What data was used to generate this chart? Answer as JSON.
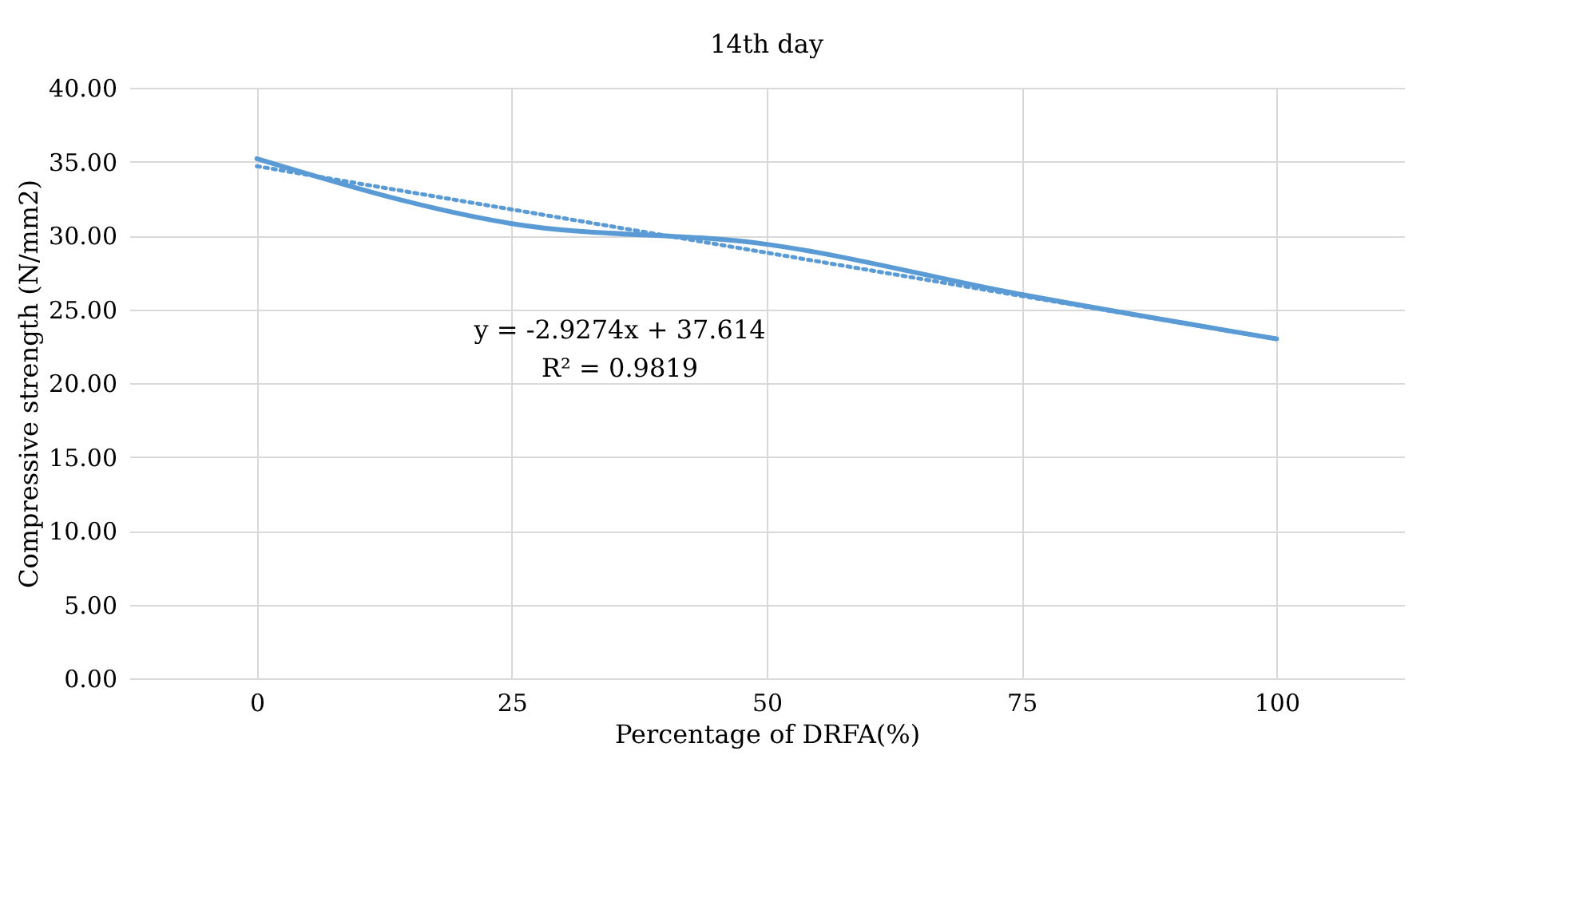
{
  "chart_data": {
    "type": "line",
    "title": "14th day",
    "xlabel": "Percentage of DRFA(%)",
    "ylabel": "Compressive strength (N/mm2)",
    "categories": [
      "0",
      "25",
      "50",
      "75",
      "100"
    ],
    "series": [
      {
        "color": "#5b9bd5",
        "values": [
          35.2,
          30.8,
          29.4,
          26.0,
          23.0
        ],
        "line_style": "solid"
      },
      {
        "type": "line",
        "x": [
          "0",
          "25",
          "50",
          "75",
          "100"
        ],
        "color": "#5b9bd5",
        "values": [
          34.69,
          31.76,
          28.83,
          25.9,
          22.98
        ],
        "line_style": "dotted"
      }
    ],
    "ylim": [
      0,
      40
    ],
    "yticks": [
      {
        "value": 0,
        "label": "0.00"
      },
      {
        "value": 5,
        "label": "5.00"
      },
      {
        "value": 10,
        "label": "10.00"
      },
      {
        "value": 15,
        "label": "15.00"
      },
      {
        "value": 20,
        "label": "20.00"
      },
      {
        "value": 25,
        "label": "25.00"
      },
      {
        "value": 30,
        "label": "30.00"
      },
      {
        "value": 35,
        "label": "35.00"
      },
      {
        "value": 40,
        "label": "40.00"
      }
    ],
    "grid": true,
    "marker": "none",
    "annotations": [
      "y = -2.9274x + 37.614",
      "R² = 0.9819"
    ]
  }
}
